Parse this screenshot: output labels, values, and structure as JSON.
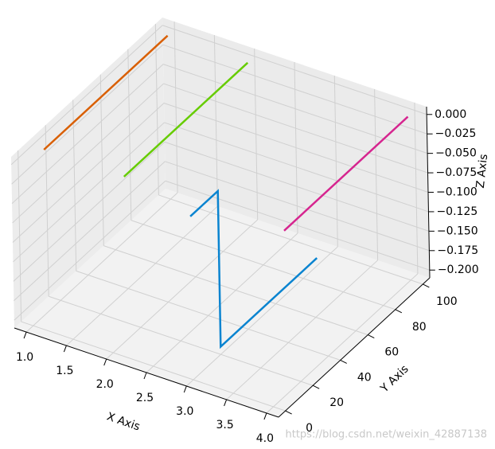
{
  "chart_data": {
    "type": "line3d",
    "xlabel": "X Axis",
    "ylabel": "Y Axis",
    "zlabel": "Z Axis",
    "xlim": [
      0.85,
      4.15
    ],
    "ylim": [
      -5,
      105
    ],
    "zlim": [
      -0.21,
      0.01
    ],
    "xticks": [
      {
        "value": 1,
        "label": "1.0"
      },
      1.5,
      {
        "value": 2,
        "label": "2.0"
      },
      2.5,
      {
        "value": 3,
        "label": "3.0"
      },
      3.5,
      {
        "value": 4,
        "label": "4.0"
      }
    ],
    "yticks": [
      0,
      20,
      40,
      60,
      80,
      100
    ],
    "zticks": [
      {
        "value": 0,
        "label": "0.000"
      },
      {
        "value": -0.025,
        "label": "−0.025"
      },
      {
        "value": -0.05,
        "label": "−0.050"
      },
      {
        "value": -0.075,
        "label": "−0.075"
      },
      {
        "value": -0.1,
        "label": "−0.100"
      },
      {
        "value": -0.125,
        "label": "−0.125"
      },
      {
        "value": -0.15,
        "label": "−0.150"
      },
      {
        "value": -0.175,
        "label": "−0.175"
      },
      {
        "value": -0.2,
        "label": "−0.200"
      }
    ],
    "grid": true,
    "series": [
      {
        "color": "#d95f02",
        "x": [
          1,
          1
        ],
        "y": [
          10,
          100
        ],
        "z": [
          0,
          0
        ]
      },
      {
        "color": "#66cc00",
        "x": [
          2,
          2
        ],
        "y": [
          10,
          100
        ],
        "z": [
          0,
          0
        ]
      },
      {
        "color": "#d6258f",
        "x": [
          4,
          4
        ],
        "y": [
          10,
          100
        ],
        "z": [
          0,
          0
        ]
      },
      {
        "color": "#0a84d0",
        "x": [
          3,
          3,
          3,
          3
        ],
        "y": [
          0,
          20,
          20,
          90
        ],
        "z": [
          0,
          0,
          -0.2,
          -0.2
        ]
      }
    ],
    "watermark": "https://blog.csdn.net/weixin_42887138"
  }
}
